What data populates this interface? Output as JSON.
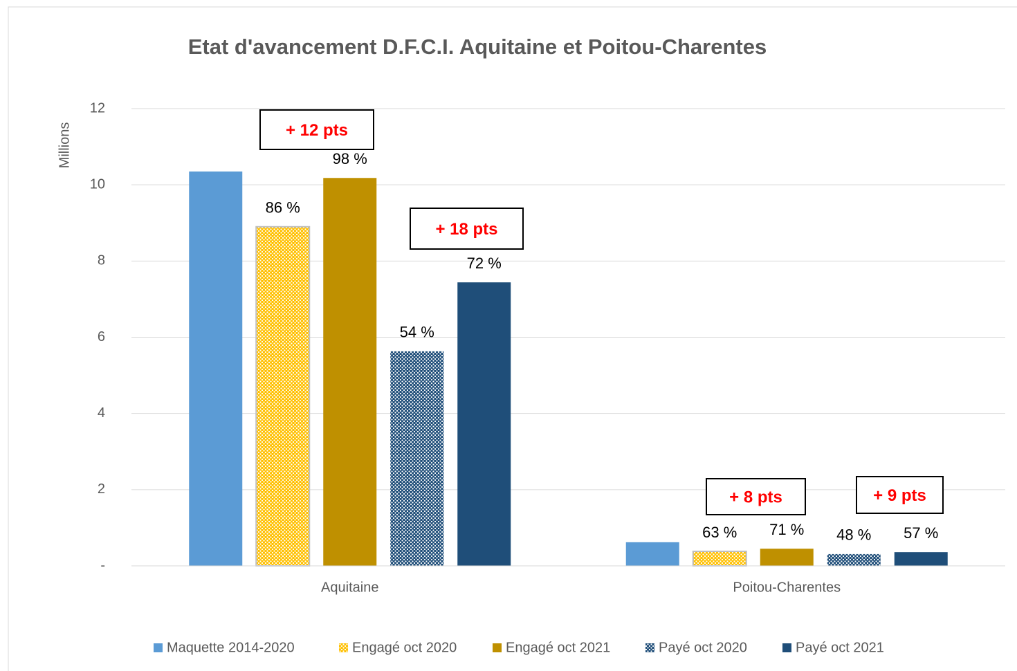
{
  "chart_data": {
    "type": "bar",
    "title": "Etat d'avancement D.F.C.I. Aquitaine et Poitou-Charentes",
    "ylabel": "Millions",
    "categories": [
      "Aquitaine",
      "Poitou-Charentes"
    ],
    "series": [
      {
        "name": "Maquette 2014-2020",
        "color": "#5b9bd5",
        "values": [
          10.35,
          0.62
        ]
      },
      {
        "name": "Engagé oct 2020",
        "color": "#ffc000",
        "pattern": "dots",
        "values": [
          8.9,
          0.38
        ],
        "percent_labels": [
          "86 %",
          "63 %"
        ]
      },
      {
        "name": "Engagé oct 2021",
        "color": "#bf9000",
        "values": [
          10.18,
          0.45
        ],
        "percent_labels": [
          "98 %",
          "71 %"
        ]
      },
      {
        "name": "Payé oct 2020",
        "color": "#1f4e79",
        "pattern": "dots",
        "values": [
          5.63,
          0.31
        ],
        "percent_labels": [
          "54 %",
          "48 %"
        ]
      },
      {
        "name": "Payé oct 2021",
        "color": "#1f4e79",
        "values": [
          7.44,
          0.36
        ],
        "percent_labels": [
          "72 %",
          "57 %"
        ]
      }
    ],
    "annotations": [
      "+ 12 pts",
      "+ 18 pts",
      "+ 8 pts",
      "+ 9 pts"
    ],
    "ylim": [
      0,
      12
    ],
    "yticks": [
      {
        "value": 0,
        "label": "-"
      },
      2,
      4,
      6,
      8,
      10,
      12
    ],
    "grid": true,
    "legend": "bottom"
  }
}
